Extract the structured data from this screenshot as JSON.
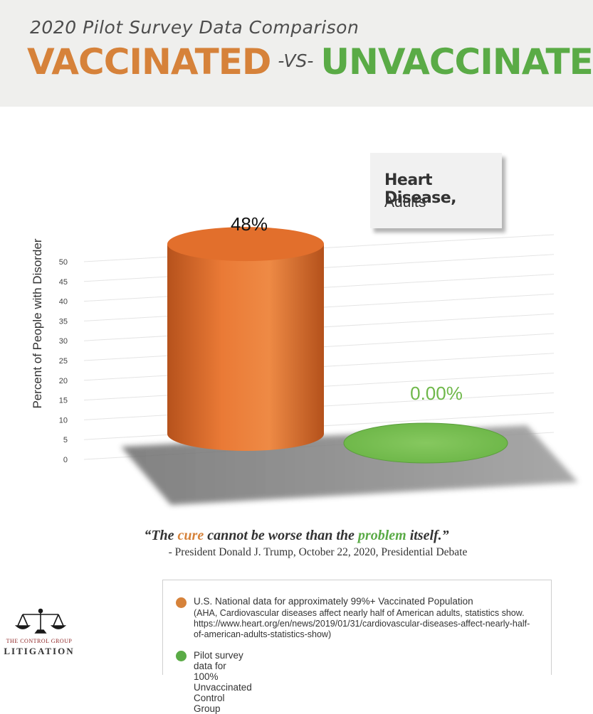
{
  "header": {
    "subtitle": "2020 Pilot Survey Data Comparison",
    "vaccinated": "VACCINATED",
    "vs": "-VS-",
    "unvaccinated": "UNVACCINATED"
  },
  "chart_data": {
    "type": "bar",
    "ylabel": "Percent of People with Disorder",
    "ylim": [
      0,
      50
    ],
    "ticks": [
      0,
      5,
      10,
      15,
      20,
      25,
      30,
      35,
      40,
      45,
      50
    ],
    "categories": [
      "Vaccinated",
      "Unvaccinated"
    ],
    "values": [
      48,
      0
    ],
    "data_labels": [
      "48%",
      "0.00%"
    ],
    "colors": [
      "#e8742f",
      "#7fc25a"
    ],
    "grid": true
  },
  "label_box": {
    "line1": "Heart Disease,",
    "line2": "Adults"
  },
  "quote": {
    "part1": "“The ",
    "cure": "cure",
    "part2": " cannot be worse than the ",
    "problem": "problem",
    "part3": " itself.”",
    "attribution": "- President Donald J. Trump, October 22, 2020, Presidential Debate"
  },
  "logo": {
    "line1": "THE CONTROL GROUP",
    "line2": "LITIGATION"
  },
  "legend": {
    "item1_main": "U.S. National data for approximately 99%+ Vaccinated Population",
    "item1_sub": "(AHA, Cardiovascular diseases affect nearly half of American adults, statistics show. https://www.heart.org/en/news/2019/01/31/cardiovascular-diseases-affect-nearly-half-of-american-adults-statistics-show)",
    "item2": "Pilot survey data for 100% Unvaccinated Control Group",
    "color1": "#d6823a",
    "color2": "#5aab46"
  }
}
